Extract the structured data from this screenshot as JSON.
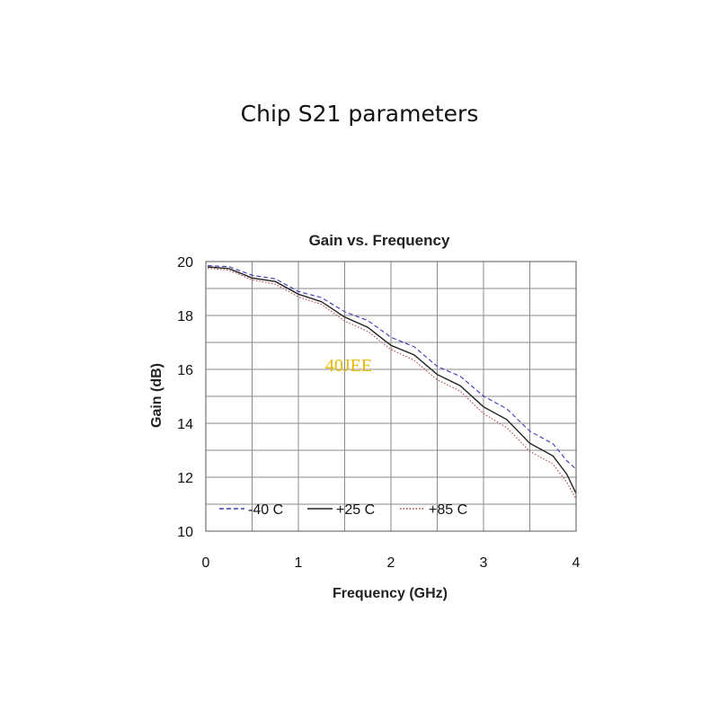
{
  "page": {
    "title": "Chip S21 parameters"
  },
  "watermark": "40JEE",
  "chart_data": {
    "type": "line",
    "title": "Gain vs. Frequency",
    "xlabel": "Frequency (GHz)",
    "ylabel": "Gain (dB)",
    "xlim": [
      0,
      4
    ],
    "ylim": [
      10,
      20
    ],
    "xticks": [
      0,
      1,
      2,
      3,
      4
    ],
    "yticks": [
      10,
      12,
      14,
      16,
      18,
      20
    ],
    "grid": true,
    "legend": "bottom-left",
    "series": [
      {
        "name": "-40 C",
        "color": "#3a3ab8",
        "style": "dashed",
        "x": [
          0.02,
          0.25,
          0.5,
          0.75,
          1.0,
          1.25,
          1.5,
          1.75,
          2.0,
          2.25,
          2.5,
          2.75,
          3.0,
          3.25,
          3.5,
          3.75,
          3.9,
          4.0
        ],
        "y": [
          19.85,
          19.75,
          19.55,
          19.3,
          18.95,
          18.6,
          18.2,
          17.75,
          17.25,
          16.75,
          16.2,
          15.65,
          15.1,
          14.45,
          13.8,
          13.15,
          12.7,
          12.3
        ]
      },
      {
        "name": "+25 C",
        "color": "#222222",
        "style": "solid",
        "x": [
          0.02,
          0.25,
          0.5,
          0.75,
          1.0,
          1.25,
          1.5,
          1.75,
          2.0,
          2.25,
          2.5,
          2.75,
          3.0,
          3.25,
          3.5,
          3.75,
          3.9,
          4.0
        ],
        "y": [
          19.8,
          19.68,
          19.45,
          19.2,
          18.85,
          18.45,
          18.0,
          17.5,
          16.95,
          16.45,
          15.9,
          15.3,
          14.7,
          14.05,
          13.35,
          12.7,
          12.2,
          11.4
        ]
      },
      {
        "name": "+85 C",
        "color": "#b04040",
        "style": "dotted",
        "x": [
          0.02,
          0.25,
          0.5,
          0.75,
          1.0,
          1.25,
          1.5,
          1.75,
          2.0,
          2.25,
          2.5,
          2.75,
          3.0,
          3.25,
          3.5,
          3.75,
          3.9,
          4.0
        ],
        "y": [
          19.75,
          19.62,
          19.38,
          19.1,
          18.75,
          18.35,
          17.85,
          17.35,
          16.8,
          16.25,
          15.7,
          15.1,
          14.45,
          13.75,
          13.05,
          12.4,
          11.9,
          11.2
        ]
      }
    ]
  }
}
